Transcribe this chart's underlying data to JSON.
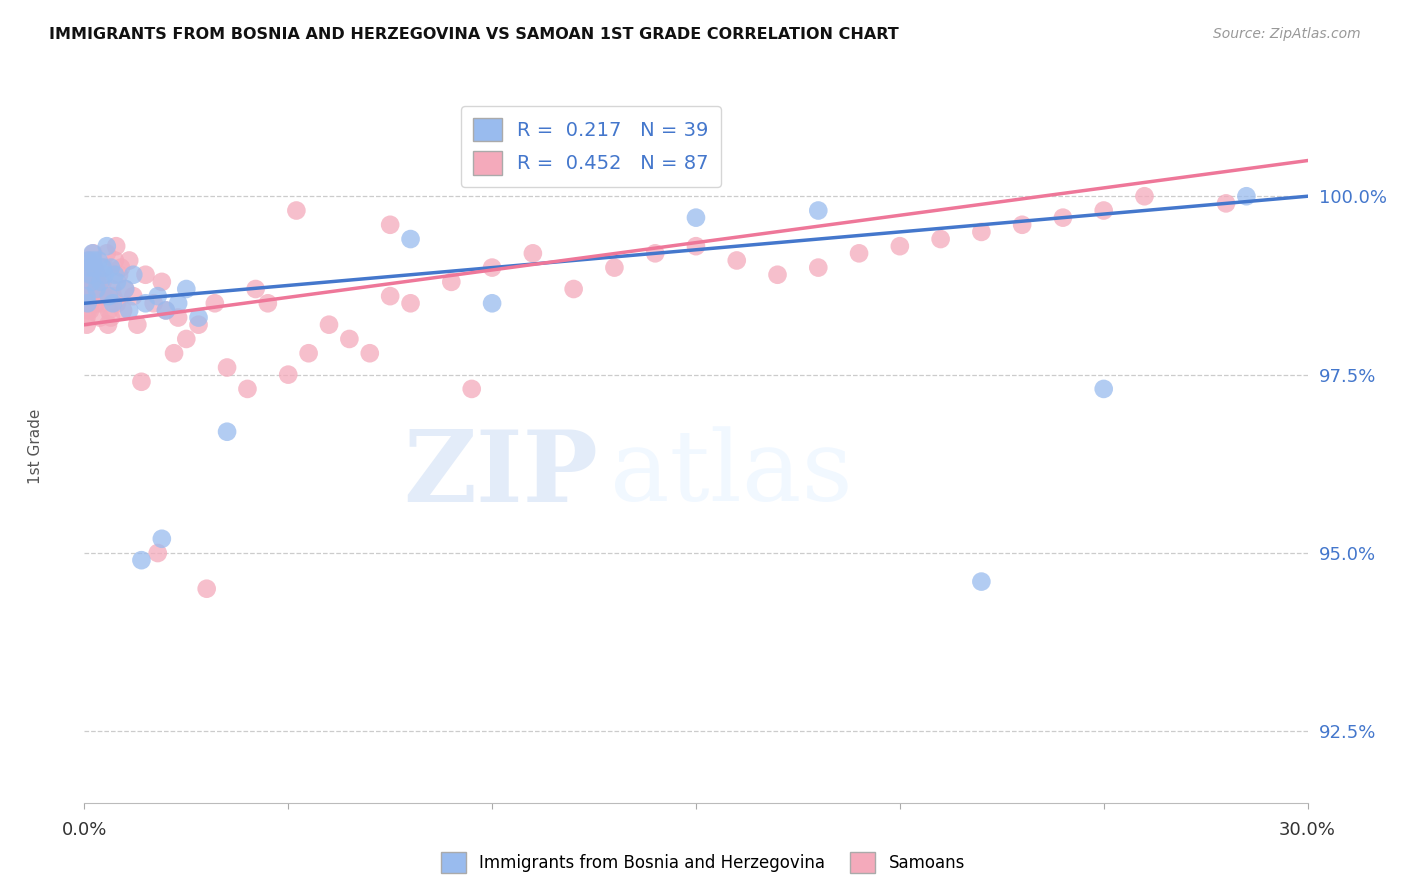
{
  "title": "IMMIGRANTS FROM BOSNIA AND HERZEGOVINA VS SAMOAN 1ST GRADE CORRELATION CHART",
  "source": "Source: ZipAtlas.com",
  "ylabel": "1st Grade",
  "ylabel_right_ticks": [
    92.5,
    95.0,
    97.5,
    100.0
  ],
  "xlim": [
    0.0,
    30.0
  ],
  "ylim": [
    91.5,
    101.5
  ],
  "blue_color": "#99BBEE",
  "pink_color": "#F4AABB",
  "blue_line_color": "#4477CC",
  "pink_line_color": "#EE7799",
  "legend_blue_label": "R =  0.217   N = 39",
  "legend_pink_label": "R =  0.452   N = 87",
  "blue_scatter_x": [
    0.05,
    0.08,
    0.1,
    0.12,
    0.15,
    0.18,
    0.2,
    0.25,
    0.3,
    0.35,
    0.4,
    0.5,
    0.55,
    0.6,
    0.65,
    0.7,
    0.8,
    1.0,
    1.2,
    1.5,
    1.8,
    2.0,
    2.3,
    2.8,
    0.22,
    0.45,
    0.75,
    1.1,
    1.4,
    1.9,
    2.5,
    3.5,
    8.0,
    15.0,
    22.0,
    28.5,
    10.0,
    18.0,
    25.0
  ],
  "blue_scatter_y": [
    98.6,
    98.5,
    99.1,
    99.0,
    98.9,
    98.8,
    99.2,
    99.0,
    98.7,
    99.1,
    98.8,
    98.9,
    99.3,
    98.6,
    99.0,
    98.5,
    98.8,
    98.7,
    98.9,
    98.5,
    98.6,
    98.4,
    98.5,
    98.3,
    99.1,
    99.0,
    98.9,
    98.4,
    94.9,
    95.2,
    98.7,
    96.7,
    99.4,
    99.7,
    94.6,
    100.0,
    98.5,
    99.8,
    97.3
  ],
  "pink_scatter_x": [
    0.05,
    0.07,
    0.08,
    0.1,
    0.12,
    0.14,
    0.15,
    0.18,
    0.2,
    0.22,
    0.25,
    0.28,
    0.3,
    0.35,
    0.4,
    0.45,
    0.5,
    0.55,
    0.6,
    0.65,
    0.7,
    0.75,
    0.8,
    0.85,
    0.9,
    0.95,
    1.0,
    1.1,
    1.2,
    1.3,
    1.5,
    1.7,
    1.9,
    2.0,
    2.2,
    2.5,
    2.8,
    3.0,
    3.5,
    4.0,
    4.5,
    5.0,
    5.5,
    6.0,
    6.5,
    7.0,
    7.5,
    8.0,
    9.0,
    10.0,
    11.0,
    12.0,
    13.0,
    14.0,
    15.0,
    16.0,
    17.0,
    18.0,
    19.0,
    20.0,
    21.0,
    22.0,
    23.0,
    24.0,
    25.0,
    26.0,
    28.0,
    0.06,
    0.09,
    0.11,
    0.16,
    0.19,
    0.24,
    0.32,
    0.38,
    0.48,
    0.58,
    0.68,
    0.78,
    1.4,
    1.8,
    2.3,
    3.2,
    4.2,
    5.2,
    7.5,
    9.5
  ],
  "pink_scatter_y": [
    98.3,
    98.8,
    98.5,
    98.7,
    99.1,
    98.4,
    99.0,
    98.6,
    98.9,
    99.2,
    98.8,
    98.5,
    98.9,
    98.7,
    98.5,
    98.8,
    99.0,
    99.2,
    98.4,
    98.3,
    98.6,
    99.1,
    98.5,
    98.9,
    99.0,
    98.4,
    98.7,
    99.1,
    98.6,
    98.2,
    98.9,
    98.5,
    98.8,
    98.4,
    97.8,
    98.0,
    98.2,
    94.5,
    97.6,
    97.3,
    98.5,
    97.5,
    97.8,
    98.2,
    98.0,
    97.8,
    98.6,
    98.5,
    98.8,
    99.0,
    99.2,
    98.7,
    99.0,
    99.2,
    99.3,
    99.1,
    98.9,
    99.0,
    99.2,
    99.3,
    99.4,
    99.5,
    99.6,
    99.7,
    99.8,
    100.0,
    99.9,
    98.2,
    98.4,
    98.7,
    98.5,
    98.9,
    99.0,
    98.8,
    98.3,
    98.6,
    98.2,
    98.7,
    99.3,
    97.4,
    95.0,
    98.3,
    98.5,
    98.7,
    99.8,
    99.6,
    97.3
  ],
  "watermark_zip": "ZIP",
  "watermark_atlas": "atlas",
  "background_color": "#FFFFFF",
  "grid_color": "#CCCCCC"
}
